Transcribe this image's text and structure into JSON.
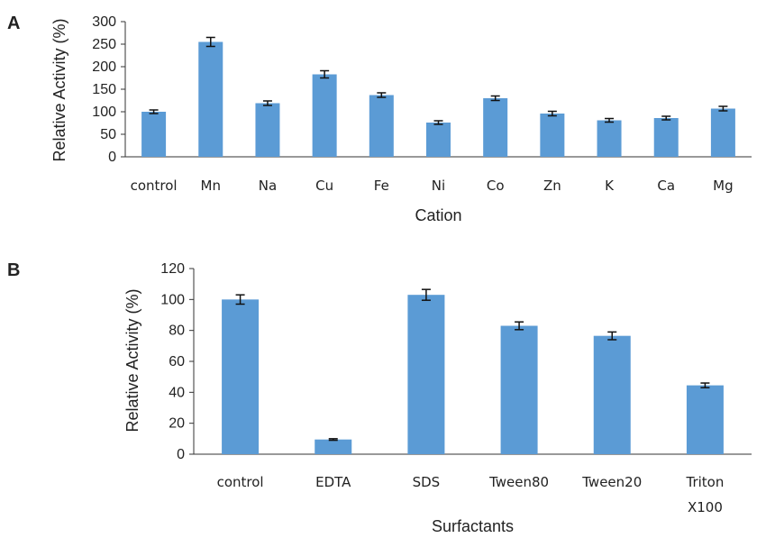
{
  "chart_data": [
    {
      "type": "bar",
      "panel_label": "A",
      "categories": [
        "control",
        "Mn",
        "Na",
        "Cu",
        "Fe",
        "Ni",
        "Co",
        "Zn",
        "K",
        "Ca",
        "Mg"
      ],
      "values": [
        100,
        255,
        119,
        183,
        137,
        76,
        130,
        96,
        81,
        86,
        107
      ],
      "errors": [
        4,
        10,
        5,
        8,
        5,
        4,
        5,
        5,
        4,
        4,
        5
      ],
      "xlabel": "Cation",
      "ylabel": "Relative Activity  (%)",
      "ylim": [
        0,
        300
      ],
      "yticks": [
        "0",
        "50",
        "100",
        "150",
        "200",
        "250",
        "300"
      ],
      "grid": false,
      "bar_color": "#5b9bd5"
    },
    {
      "type": "bar",
      "panel_label": "B",
      "categories": [
        "control",
        "EDTA",
        "SDS",
        "Tween80",
        "Tween20",
        [
          "Triton",
          "X100"
        ]
      ],
      "values": [
        100,
        9.5,
        103,
        83,
        76.5,
        44.5
      ],
      "errors": [
        3,
        0.5,
        3.5,
        2.5,
        2.5,
        1.5
      ],
      "xlabel": "Surfactants",
      "ylabel": "Relative Activity  (%)",
      "ylim": [
        0,
        120
      ],
      "yticks": [
        "0",
        "20",
        "40",
        "60",
        "80",
        "100",
        "120"
      ],
      "grid": false,
      "bar_color": "#5b9bd5"
    }
  ]
}
